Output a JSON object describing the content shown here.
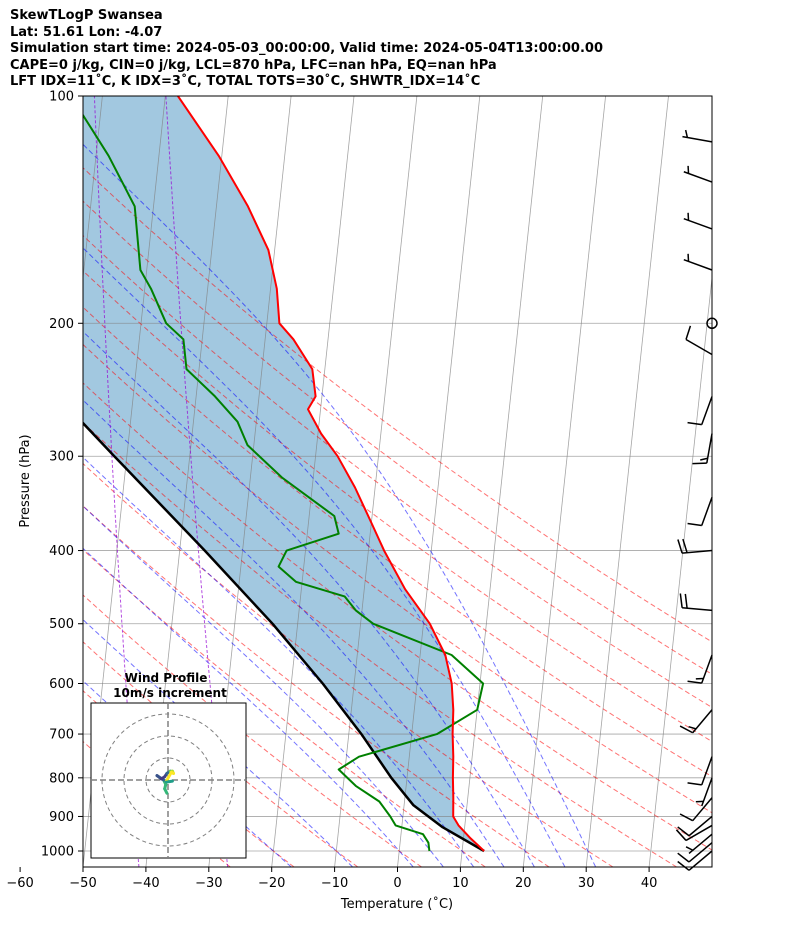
{
  "header": {
    "lines": [
      "SkewTLogP Swansea",
      "Lat: 51.61   Lon: -4.07",
      "Simulation start time: 2024-05-03_00:00:00, Valid time: 2024-05-04T13:00:00.00",
      "CAPE=0 j/kg, CIN=0 j/kg, LCL=870 hPa, LFC=nan hPa, EQ=nan hPa",
      "LFT IDX=11˚C, K IDX=3˚C, TOTAL TOTS=30˚C, SHWTR_IDX=14˚C"
    ]
  },
  "chart_data": {
    "type": "skewt",
    "xlabel": "Temperature (˚C)",
    "ylabel": "Pressure (hPa)",
    "xlim": [
      -60,
      40
    ],
    "ylim": [
      1050,
      100
    ],
    "y_scale": "log",
    "grid": true,
    "x_ticks": [
      -60,
      -50,
      -40,
      -30,
      -20,
      -10,
      0,
      10,
      20,
      30,
      40
    ],
    "y_ticks": [
      100,
      200,
      300,
      400,
      500,
      600,
      700,
      800,
      900,
      1000
    ],
    "colors": {
      "temperature": "#ff0000",
      "dewpoint": "#008000",
      "parcel": "#000000",
      "shade": "#a2c8e0",
      "dry_adiabats": "#ff0000",
      "moist_adiabats": "#0000ff",
      "mixing_ratio": "#9400d3",
      "isotherms": "#808080"
    },
    "temperature": [
      {
        "p": 1000,
        "t": 13.5
      },
      {
        "p": 960,
        "t": 11
      },
      {
        "p": 925,
        "t": 9
      },
      {
        "p": 900,
        "t": 8
      },
      {
        "p": 850,
        "t": 7.7
      },
      {
        "p": 800,
        "t": 7.3
      },
      {
        "p": 750,
        "t": 7
      },
      {
        "p": 700,
        "t": 6.5
      },
      {
        "p": 650,
        "t": 6.2
      },
      {
        "p": 600,
        "t": 5.5
      },
      {
        "p": 550,
        "t": 4
      },
      {
        "p": 500,
        "t": 1
      },
      {
        "p": 450,
        "t": -3.5
      },
      {
        "p": 400,
        "t": -7.5
      },
      {
        "p": 370,
        "t": -9.8
      },
      {
        "p": 330,
        "t": -13.2
      },
      {
        "p": 300,
        "t": -16.5
      },
      {
        "p": 280,
        "t": -19.5
      },
      {
        "p": 260,
        "t": -22
      },
      {
        "p": 250,
        "t": -21
      },
      {
        "p": 230,
        "t": -22
      },
      {
        "p": 210,
        "t": -25.5
      },
      {
        "p": 200,
        "t": -28
      },
      {
        "p": 180,
        "t": -29
      },
      {
        "p": 160,
        "t": -31
      },
      {
        "p": 140,
        "t": -35
      },
      {
        "p": 120,
        "t": -40.5
      },
      {
        "p": 100,
        "t": -48
      }
    ],
    "dewpoint": [
      {
        "p": 1000,
        "t": 4.8
      },
      {
        "p": 975,
        "t": 4.5
      },
      {
        "p": 950,
        "t": 3.5
      },
      {
        "p": 925,
        "t": -1
      },
      {
        "p": 900,
        "t": -2
      },
      {
        "p": 860,
        "t": -4
      },
      {
        "p": 820,
        "t": -8
      },
      {
        "p": 780,
        "t": -11
      },
      {
        "p": 750,
        "t": -8
      },
      {
        "p": 700,
        "t": 4
      },
      {
        "p": 650,
        "t": 10
      },
      {
        "p": 600,
        "t": 10.5
      },
      {
        "p": 550,
        "t": 5
      },
      {
        "p": 500,
        "t": -8
      },
      {
        "p": 480,
        "t": -11
      },
      {
        "p": 460,
        "t": -13
      },
      {
        "p": 440,
        "t": -21
      },
      {
        "p": 420,
        "t": -24
      },
      {
        "p": 400,
        "t": -23
      },
      {
        "p": 380,
        "t": -15
      },
      {
        "p": 360,
        "t": -16
      },
      {
        "p": 320,
        "t": -25
      },
      {
        "p": 290,
        "t": -31
      },
      {
        "p": 270,
        "t": -33
      },
      {
        "p": 250,
        "t": -37
      },
      {
        "p": 230,
        "t": -42
      },
      {
        "p": 210,
        "t": -43
      },
      {
        "p": 200,
        "t": -46
      },
      {
        "p": 180,
        "t": -49
      },
      {
        "p": 170,
        "t": -51
      },
      {
        "p": 140,
        "t": -53
      },
      {
        "p": 120,
        "t": -58
      },
      {
        "p": 100,
        "t": -65
      }
    ],
    "parcel": [
      {
        "p": 1000,
        "t": 13.5
      },
      {
        "p": 930,
        "t": 6.5
      },
      {
        "p": 870,
        "t": 1.5
      },
      {
        "p": 800,
        "t": -2.5
      },
      {
        "p": 700,
        "t": -8
      },
      {
        "p": 600,
        "t": -15
      },
      {
        "p": 500,
        "t": -24
      },
      {
        "p": 400,
        "t": -36
      },
      {
        "p": 300,
        "t": -52
      },
      {
        "p": 250,
        "t": -62
      },
      {
        "p": 200,
        "t": -74
      },
      {
        "p": 150,
        "t": -90
      },
      {
        "p": 120,
        "t": -101
      },
      {
        "p": 100,
        "t": -109
      }
    ],
    "wind_barbs": [
      {
        "p": 1000,
        "speed_kt": 10,
        "dir": 230
      },
      {
        "p": 975,
        "speed_kt": 10,
        "dir": 230
      },
      {
        "p": 950,
        "speed_kt": 5,
        "dir": 230
      },
      {
        "p": 925,
        "speed_kt": 10,
        "dir": 240
      },
      {
        "p": 900,
        "speed_kt": 10,
        "dir": 230
      },
      {
        "p": 850,
        "speed_kt": 10,
        "dir": 220
      },
      {
        "p": 800,
        "speed_kt": 5,
        "dir": 200
      },
      {
        "p": 750,
        "speed_kt": 10,
        "dir": 200
      },
      {
        "p": 650,
        "speed_kt": 15,
        "dir": 220
      },
      {
        "p": 550,
        "speed_kt": 15,
        "dir": 200
      },
      {
        "p": 480,
        "speed_kt": 20,
        "dir": 275
      },
      {
        "p": 400,
        "speed_kt": 20,
        "dir": 265
      },
      {
        "p": 340,
        "speed_kt": 10,
        "dir": 200
      },
      {
        "p": 280,
        "speed_kt": 15,
        "dir": 190
      },
      {
        "p": 250,
        "speed_kt": 10,
        "dir": 200
      },
      {
        "p": 220,
        "speed_kt": 10,
        "dir": 300
      },
      {
        "p": 200,
        "speed_kt": 0,
        "dir": 0
      },
      {
        "p": 170,
        "speed_kt": 5,
        "dir": 290
      },
      {
        "p": 150,
        "speed_kt": 5,
        "dir": 290
      },
      {
        "p": 130,
        "speed_kt": 5,
        "dir": 290
      },
      {
        "p": 115,
        "speed_kt": 5,
        "dir": 280
      }
    ],
    "inset": {
      "title": "Wind Profile",
      "subtitle": "10m/s increment",
      "rings": [
        10,
        20,
        30
      ],
      "hodograph": [
        {
          "u": -0.5,
          "v": -6,
          "c": "#35b779"
        },
        {
          "u": -1.5,
          "v": -4,
          "c": "#35b779"
        },
        {
          "u": -1,
          "v": -2,
          "c": "#35b779"
        },
        {
          "u": -2,
          "v": 0,
          "c": "#31688e"
        },
        {
          "u": -5,
          "v": 2,
          "c": "#3b528b"
        },
        {
          "u": -3,
          "v": 0.5,
          "c": "#443983"
        },
        {
          "u": -1.5,
          "v": 1.5,
          "c": "#414487"
        },
        {
          "u": -0.5,
          "v": 3,
          "c": "#31688e"
        },
        {
          "u": 1,
          "v": 4,
          "c": "#6ece58"
        },
        {
          "u": 2,
          "v": 4,
          "c": "#b5de2b"
        },
        {
          "u": 2.5,
          "v": 3,
          "c": "#fde725"
        },
        {
          "u": 1.5,
          "v": 3.5,
          "c": "#fde725"
        },
        {
          "u": -1,
          "v": -1,
          "c": "#1f9e89"
        },
        {
          "u": 2,
          "v": -0.5,
          "c": "#35b779"
        }
      ]
    }
  }
}
